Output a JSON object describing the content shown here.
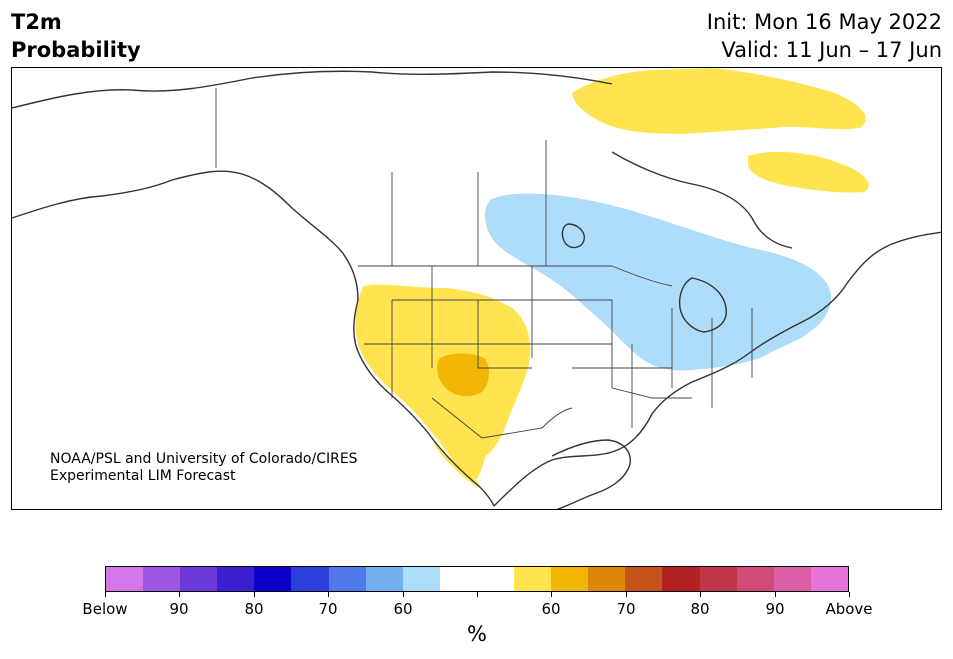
{
  "title": {
    "left_line1": "T2m",
    "left_line2": "Probability",
    "right_line1": "Init: Mon 16 May 2022",
    "right_line2": "Valid: 11 Jun – 17 Jun"
  },
  "credit": {
    "line1": "NOAA/PSL and University of Colorado/CIRES",
    "line2": "Experimental LIM Forecast"
  },
  "legend": {
    "unit": "%",
    "colors": [
      "#d674e9",
      "#9d57e3",
      "#6b39d8",
      "#3b1fd1",
      "#0a00c8",
      "#2a3fdb",
      "#4f78e8",
      "#74aff2",
      "#aedcfb",
      "#ffffff",
      "#ffffff",
      "#ffe34f",
      "#f2b705",
      "#de860b",
      "#c65418",
      "#b22222",
      "#c0364b",
      "#d04b78",
      "#dd5fa8",
      "#e874d9"
    ],
    "tick_labels": [
      "Below",
      "90",
      "80",
      "70",
      "60",
      "",
      "60",
      "70",
      "80",
      "90",
      "Above"
    ]
  },
  "regions": {
    "above_light": "#ffe34f",
    "above_mid": "#f2b705",
    "below_light": "#aedcfb"
  }
}
